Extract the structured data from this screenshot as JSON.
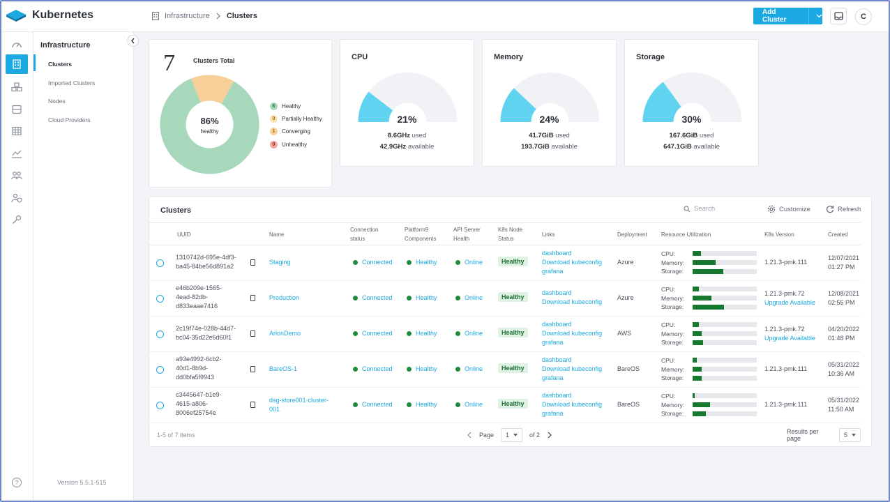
{
  "app": {
    "title": "Kubernetes"
  },
  "breadcrumb": {
    "parent": "Infrastructure",
    "current": "Clusters"
  },
  "header": {
    "add_cluster": "Add Cluster",
    "avatar_initial": "C"
  },
  "sidebar": {
    "title": "Infrastructure",
    "items": [
      "Clusters",
      "Imported Clusters",
      "Nodes",
      "Cloud Providers"
    ],
    "active": "Clusters",
    "version": "Version 5.5.1-515",
    "help": "?"
  },
  "summary": {
    "total": "7",
    "total_label": "Clusters Total",
    "donut_percent": "86%",
    "donut_label": "healthy",
    "legend": [
      {
        "count": "6",
        "label": "Healthy",
        "color": "#a8d8bb"
      },
      {
        "count": "0",
        "label": "Partially Healthy",
        "color": "#fde2b0"
      },
      {
        "count": "1",
        "label": "Converging",
        "color": "#f8cf99"
      },
      {
        "count": "0",
        "label": "Unhealthy",
        "color": "#f3a5a0"
      }
    ]
  },
  "gauges": [
    {
      "title": "CPU",
      "percent": "21%",
      "fraction": 0.21,
      "used": "8.6GHz",
      "used_label": "used",
      "available": "42.9GHz",
      "available_label": "available"
    },
    {
      "title": "Memory",
      "percent": "24%",
      "fraction": 0.24,
      "used": "41.7GiB",
      "used_label": "used",
      "available": "193.7GiB",
      "available_label": "available"
    },
    {
      "title": "Storage",
      "percent": "30%",
      "fraction": 0.3,
      "used": "167.6GiB",
      "used_label": "used",
      "available": "647.1GiB",
      "available_label": "available"
    }
  ],
  "table": {
    "title": "Clusters",
    "search_placeholder": "Search",
    "customize": "Customize",
    "refresh": "Refresh",
    "columns": {
      "uuid": "UUID",
      "name": "Name",
      "connection_1": "Connection",
      "connection_2": "status",
      "platform_1": "Platform9",
      "platform_2": "Components",
      "api_1": "API Server",
      "api_2": "Health",
      "k8snode_1": "K8s Node",
      "k8snode_2": "Status",
      "links": "Links",
      "deployment": "Deployment",
      "resource": "Resource Utilization",
      "k8sversion": "K8s Version",
      "created": "Created"
    },
    "resource_labels": {
      "cpu": "CPU:",
      "memory": "Memory:",
      "storage": "Storage:"
    },
    "rows": [
      {
        "uuid_1": "1310742d-695e-4df3-",
        "uuid_2": "ba45-84be56d891a2",
        "uuid_3": "",
        "name_1": "Staging",
        "name_2": "",
        "connection": "Connected",
        "platform": "Healthy",
        "api": "Online",
        "node": "Healthy",
        "link_1": "dashboard",
        "link_2": "Download kubeconfig",
        "link_3": "grafana",
        "deployment": "Azure",
        "cpu": 0.13,
        "memory": 0.36,
        "storage": 0.48,
        "version_1": "1.21.3-pmk.111",
        "version_2": "",
        "created_1": "12/07/2021",
        "created_2": "01:27 PM"
      },
      {
        "uuid_1": "e46b209e-1565-",
        "uuid_2": "4ead-82db-",
        "uuid_3": "d833eaae7416",
        "name_1": "Production",
        "name_2": "",
        "connection": "Connected",
        "platform": "Healthy",
        "api": "Online",
        "node": "Healthy",
        "link_1": "dashboard",
        "link_2": "Download kubeconfig",
        "link_3": "",
        "deployment": "Azure",
        "cpu": 0.1,
        "memory": 0.29,
        "storage": 0.49,
        "version_1": "1.21.3-pmk.72",
        "version_2": "Upgrade Available",
        "created_1": "12/08/2021",
        "created_2": "02:55 PM"
      },
      {
        "uuid_1": "2c19f74e-028b-44d7-",
        "uuid_2": "bc04-35d22e6d60f1",
        "uuid_3": "",
        "name_1": "ArlonDemo",
        "name_2": "",
        "connection": "Connected",
        "platform": "Healthy",
        "api": "Online",
        "node": "Healthy",
        "link_1": "dashboard",
        "link_2": "Download kubeconfig",
        "link_3": "grafana",
        "deployment": "AWS",
        "cpu": 0.1,
        "memory": 0.14,
        "storage": 0.16,
        "version_1": "1.21.3-pmk.72",
        "version_2": "Upgrade Available",
        "created_1": "04/20/2022",
        "created_2": "01:48 PM"
      },
      {
        "uuid_1": "a93e4992-6cb2-",
        "uuid_2": "40d1-8b9d-",
        "uuid_3": "dd0bfa5f9943",
        "name_1": "BareOS-1",
        "name_2": "",
        "connection": "Connected",
        "platform": "Healthy",
        "api": "Online",
        "node": "Healthy",
        "link_1": "dashboard",
        "link_2": "Download kubeconfig",
        "link_3": "grafana",
        "deployment": "BareOS",
        "cpu": 0.06,
        "memory": 0.14,
        "storage": 0.14,
        "version_1": "1.21.3-pmk.111",
        "version_2": "",
        "created_1": "05/31/2022",
        "created_2": "10:36 AM"
      },
      {
        "uuid_1": "c3445647-b1e9-",
        "uuid_2": "4615-a806-",
        "uuid_3": "8006ef25754e",
        "name_1": "dsg-store001-cluster-",
        "name_2": "001",
        "connection": "Connected",
        "platform": "Healthy",
        "api": "Online",
        "node": "Healthy",
        "link_1": "dashboard",
        "link_2": "Download kubeconfig",
        "link_3": "grafana",
        "deployment": "BareOS",
        "cpu": 0.03,
        "memory": 0.27,
        "storage": 0.21,
        "version_1": "1.21.3-pmk.111",
        "version_2": "",
        "created_1": "05/31/2022",
        "created_2": "11:50 AM"
      }
    ],
    "footer": {
      "items": "1-5 of 7 items",
      "page_label": "Page",
      "page": "1",
      "of": "of 2",
      "per_page_label": "Results per page",
      "per_page": "5"
    }
  },
  "colors": {
    "accent": "#1aa9e0",
    "healthy_green": "#1f8b3c",
    "gauge_fill": "#5fd3f0",
    "gauge_track": "#f1f2f6"
  }
}
